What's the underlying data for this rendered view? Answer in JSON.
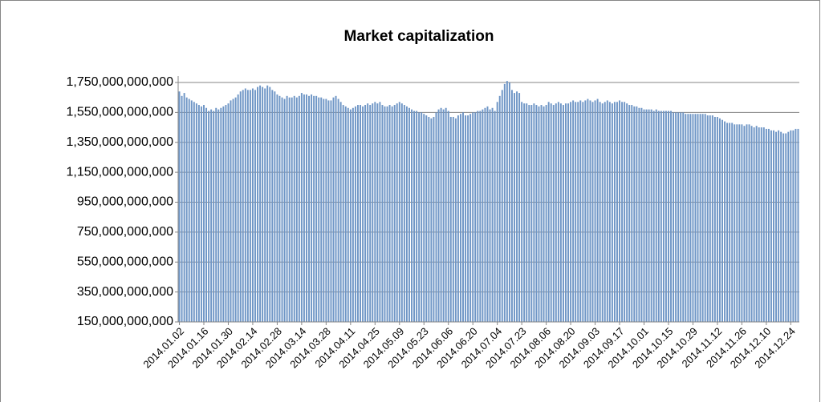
{
  "chart_data": {
    "type": "bar",
    "title": "Market capitalization",
    "color": "#6f96c6",
    "grid": true,
    "ylim": [
      150000000000,
      1750000000000
    ],
    "yticks": [
      {
        "value": 150000000000,
        "label": "150,000,000,000"
      },
      {
        "value": 350000000000,
        "label": "350,000,000,000"
      },
      {
        "value": 550000000000,
        "label": "550,000,000,000"
      },
      {
        "value": 750000000000,
        "label": "750,000,000,000"
      },
      {
        "value": 950000000000,
        "label": "950,000,000,000"
      },
      {
        "value": 1150000000000,
        "label": "1,150,000,000,000"
      },
      {
        "value": 1350000000000,
        "label": "1,350,000,000,000"
      },
      {
        "value": 1550000000000,
        "label": "1,550,000,000,000"
      },
      {
        "value": 1750000000000,
        "label": "1,750,000,000,000"
      }
    ],
    "categories": [
      "2014.01.02",
      null,
      null,
      null,
      null,
      null,
      null,
      null,
      null,
      null,
      "2014.01.16",
      null,
      null,
      null,
      null,
      null,
      null,
      null,
      null,
      null,
      "2014.01.30",
      null,
      null,
      null,
      null,
      null,
      null,
      null,
      null,
      null,
      "2014.02.14",
      null,
      null,
      null,
      null,
      null,
      null,
      null,
      null,
      null,
      "2014.02.28",
      null,
      null,
      null,
      null,
      null,
      null,
      null,
      null,
      null,
      "2014.03.14",
      null,
      null,
      null,
      null,
      null,
      null,
      null,
      null,
      null,
      "2014.03.28",
      null,
      null,
      null,
      null,
      null,
      null,
      null,
      null,
      null,
      "2014.04.11",
      null,
      null,
      null,
      null,
      null,
      null,
      null,
      null,
      null,
      "2014.04.25",
      null,
      null,
      null,
      null,
      null,
      null,
      null,
      null,
      null,
      "2014.05.09",
      null,
      null,
      null,
      null,
      null,
      null,
      null,
      null,
      null,
      "2014.05.23",
      null,
      null,
      null,
      null,
      null,
      null,
      null,
      null,
      null,
      "2014.06.06",
      null,
      null,
      null,
      null,
      null,
      null,
      null,
      null,
      null,
      "2014.06.20",
      null,
      null,
      null,
      null,
      null,
      null,
      null,
      null,
      null,
      "2014.07.04",
      null,
      null,
      null,
      null,
      null,
      null,
      null,
      null,
      null,
      "2014.07.23",
      null,
      null,
      null,
      null,
      null,
      null,
      null,
      null,
      null,
      "2014.08.06",
      null,
      null,
      null,
      null,
      null,
      null,
      null,
      null,
      null,
      "2014.08.20",
      null,
      null,
      null,
      null,
      null,
      null,
      null,
      null,
      null,
      "2014.09.03",
      null,
      null,
      null,
      null,
      null,
      null,
      null,
      null,
      null,
      "2014.09.17",
      null,
      null,
      null,
      null,
      null,
      null,
      null,
      null,
      null,
      "2014.10.01",
      null,
      null,
      null,
      null,
      null,
      null,
      null,
      null,
      null,
      "2014.10.15",
      null,
      null,
      null,
      null,
      null,
      null,
      null,
      null,
      null,
      "2014.10.29",
      null,
      null,
      null,
      null,
      null,
      null,
      null,
      null,
      null,
      "2014.11.12",
      null,
      null,
      null,
      null,
      null,
      null,
      null,
      null,
      null,
      "2014.11.26",
      null,
      null,
      null,
      null,
      null,
      null,
      null,
      null,
      null,
      "2014.12.10",
      null,
      null,
      null,
      null,
      null,
      null,
      null,
      null,
      null,
      "2014.12.24",
      null,
      null,
      null
    ],
    "values": [
      1690000000000.0,
      1660000000000.0,
      1680000000000.0,
      1650000000000.0,
      1640000000000.0,
      1630000000000.0,
      1620000000000.0,
      1610000000000.0,
      1600000000000.0,
      1590000000000.0,
      1600000000000.0,
      1580000000000.0,
      1560000000000.0,
      1570000000000.0,
      1560000000000.0,
      1580000000000.0,
      1570000000000.0,
      1580000000000.0,
      1590000000000.0,
      1600000000000.0,
      1610000000000.0,
      1630000000000.0,
      1640000000000.0,
      1650000000000.0,
      1670000000000.0,
      1690000000000.0,
      1700000000000.0,
      1710000000000.0,
      1700000000000.0,
      1700000000000.0,
      1710000000000.0,
      1700000000000.0,
      1720000000000.0,
      1730000000000.0,
      1720000000000.0,
      1710000000000.0,
      1730000000000.0,
      1720000000000.0,
      1700000000000.0,
      1690000000000.0,
      1670000000000.0,
      1660000000000.0,
      1650000000000.0,
      1640000000000.0,
      1660000000000.0,
      1650000000000.0,
      1650000000000.0,
      1660000000000.0,
      1650000000000.0,
      1660000000000.0,
      1680000000000.0,
      1670000000000.0,
      1670000000000.0,
      1660000000000.0,
      1670000000000.0,
      1660000000000.0,
      1660000000000.0,
      1650000000000.0,
      1650000000000.0,
      1640000000000.0,
      1640000000000.0,
      1630000000000.0,
      1630000000000.0,
      1650000000000.0,
      1660000000000.0,
      1640000000000.0,
      1620000000000.0,
      1600000000000.0,
      1590000000000.0,
      1580000000000.0,
      1570000000000.0,
      1580000000000.0,
      1590000000000.0,
      1600000000000.0,
      1600000000000.0,
      1590000000000.0,
      1600000000000.0,
      1610000000000.0,
      1600000000000.0,
      1610000000000.0,
      1620000000000.0,
      1610000000000.0,
      1620000000000.0,
      1600000000000.0,
      1590000000000.0,
      1590000000000.0,
      1600000000000.0,
      1590000000000.0,
      1600000000000.0,
      1610000000000.0,
      1620000000000.0,
      1610000000000.0,
      1600000000000.0,
      1590000000000.0,
      1580000000000.0,
      1570000000000.0,
      1560000000000.0,
      1560000000000.0,
      1550000000000.0,
      1550000000000.0,
      1540000000000.0,
      1530000000000.0,
      1520000000000.0,
      1510000000000.0,
      1520000000000.0,
      1550000000000.0,
      1570000000000.0,
      1580000000000.0,
      1570000000000.0,
      1580000000000.0,
      1560000000000.0,
      1520000000000.0,
      1520000000000.0,
      1510000000000.0,
      1530000000000.0,
      1540000000000.0,
      1550000000000.0,
      1530000000000.0,
      1530000000000.0,
      1540000000000.0,
      1550000000000.0,
      1550000000000.0,
      1560000000000.0,
      1560000000000.0,
      1570000000000.0,
      1580000000000.0,
      1590000000000.0,
      1570000000000.0,
      1580000000000.0,
      1560000000000.0,
      1620000000000.0,
      1660000000000.0,
      1700000000000.0,
      1740000000000.0,
      1760000000000.0,
      1750000000000.0,
      1700000000000.0,
      1680000000000.0,
      1690000000000.0,
      1680000000000.0,
      1620000000000.0,
      1610000000000.0,
      1610000000000.0,
      1600000000000.0,
      1600000000000.0,
      1610000000000.0,
      1600000000000.0,
      1590000000000.0,
      1600000000000.0,
      1590000000000.0,
      1600000000000.0,
      1620000000000.0,
      1610000000000.0,
      1600000000000.0,
      1610000000000.0,
      1620000000000.0,
      1610000000000.0,
      1600000000000.0,
      1610000000000.0,
      1610000000000.0,
      1620000000000.0,
      1630000000000.0,
      1620000000000.0,
      1620000000000.0,
      1630000000000.0,
      1620000000000.0,
      1630000000000.0,
      1640000000000.0,
      1630000000000.0,
      1620000000000.0,
      1630000000000.0,
      1640000000000.0,
      1620000000000.0,
      1610000000000.0,
      1620000000000.0,
      1630000000000.0,
      1620000000000.0,
      1610000000000.0,
      1620000000000.0,
      1620000000000.0,
      1630000000000.0,
      1620000000000.0,
      1620000000000.0,
      1610000000000.0,
      1600000000000.0,
      1600000000000.0,
      1590000000000.0,
      1590000000000.0,
      1580000000000.0,
      1580000000000.0,
      1570000000000.0,
      1570000000000.0,
      1570000000000.0,
      1570000000000.0,
      1560000000000.0,
      1570000000000.0,
      1560000000000.0,
      1560000000000.0,
      1560000000000.0,
      1560000000000.0,
      1560000000000.0,
      1560000000000.0,
      1550000000000.0,
      1550000000000.0,
      1550000000000.0,
      1550000000000.0,
      1550000000000.0,
      1540000000000.0,
      1540000000000.0,
      1540000000000.0,
      1540000000000.0,
      1540000000000.0,
      1540000000000.0,
      1540000000000.0,
      1540000000000.0,
      1540000000000.0,
      1530000000000.0,
      1530000000000.0,
      1530000000000.0,
      1520000000000.0,
      1520000000000.0,
      1510000000000.0,
      1500000000000.0,
      1490000000000.0,
      1480000000000.0,
      1480000000000.0,
      1480000000000.0,
      1470000000000.0,
      1470000000000.0,
      1470000000000.0,
      1470000000000.0,
      1460000000000.0,
      1470000000000.0,
      1470000000000.0,
      1460000000000.0,
      1450000000000.0,
      1460000000000.0,
      1450000000000.0,
      1450000000000.0,
      1450000000000.0,
      1440000000000.0,
      1440000000000.0,
      1430000000000.0,
      1430000000000.0,
      1420000000000.0,
      1430000000000.0,
      1420000000000.0,
      1410000000000.0,
      1410000000000.0,
      1420000000000.0,
      1430000000000.0,
      1430000000000.0,
      1440000000000.0,
      1440000000000.0
    ]
  }
}
